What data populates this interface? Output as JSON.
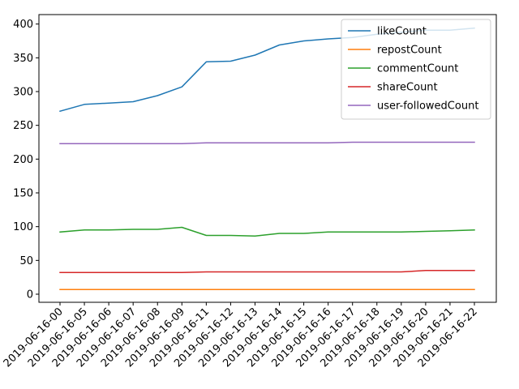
{
  "chart_data": {
    "type": "line",
    "title": "",
    "xlabel": "",
    "ylabel": "",
    "categories": [
      "2019-06-16-00",
      "2019-06-16-05",
      "2019-06-16-06",
      "2019-06-16-07",
      "2019-06-16-08",
      "2019-06-16-09",
      "2019-06-16-11",
      "2019-06-16-12",
      "2019-06-16-13",
      "2019-06-16-14",
      "2019-06-16-15",
      "2019-06-16-16",
      "2019-06-16-17",
      "2019-06-16-18",
      "2019-06-16-19",
      "2019-06-16-20",
      "2019-06-16-21",
      "2019-06-16-22"
    ],
    "ylim": [
      -12,
      414
    ],
    "yticks": [
      0,
      50,
      100,
      150,
      200,
      250,
      300,
      350,
      400
    ],
    "grid": false,
    "legend_position": "top-right",
    "series": [
      {
        "name": "likeCount",
        "color": "#1f77b4",
        "values": [
          271,
          281,
          283,
          285,
          294,
          307,
          344,
          345,
          354,
          369,
          375,
          378,
          380,
          385,
          388,
          391,
          391,
          394
        ]
      },
      {
        "name": "repostCount",
        "color": "#ff7f0e",
        "values": [
          7,
          7,
          7,
          7,
          7,
          7,
          7,
          7,
          7,
          7,
          7,
          7,
          7,
          7,
          7,
          7,
          7,
          7
        ]
      },
      {
        "name": "commentCount",
        "color": "#2ca02c",
        "values": [
          92,
          95,
          95,
          96,
          96,
          99,
          87,
          87,
          86,
          90,
          90,
          92,
          92,
          92,
          92,
          93,
          94,
          95
        ]
      },
      {
        "name": "shareCount",
        "color": "#d62728",
        "values": [
          32,
          32,
          32,
          32,
          32,
          32,
          33,
          33,
          33,
          33,
          33,
          33,
          33,
          33,
          33,
          35,
          35,
          35
        ]
      },
      {
        "name": "user-followedCount",
        "color": "#9467bd",
        "values": [
          223,
          223,
          223,
          223,
          223,
          223,
          224,
          224,
          224,
          224,
          224,
          224,
          225,
          225,
          225,
          225,
          225,
          225
        ]
      }
    ]
  }
}
